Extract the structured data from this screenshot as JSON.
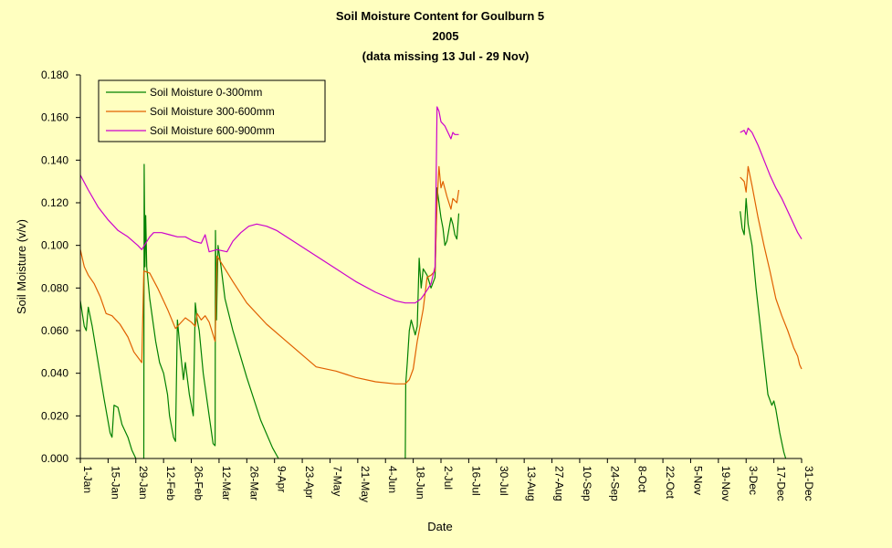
{
  "chart_data": {
    "type": "line",
    "title": "Soil Moisture Content for Goulburn 5",
    "subtitle_year": "2005",
    "subtitle_note": "(data missing 13 Jul - 29 Nov)",
    "xlabel": "Date",
    "ylabel": "Soil Moisture (v/v)",
    "ylim": [
      0,
      0.18
    ],
    "xlim_days": [
      1,
      365
    ],
    "grid": false,
    "legend_position": "top-left",
    "y_ticks": [
      "0.000",
      "0.020",
      "0.040",
      "0.060",
      "0.080",
      "0.100",
      "0.120",
      "0.140",
      "0.160",
      "0.180"
    ],
    "x_tick_labels": [
      "1-Jan",
      "15-Jan",
      "29-Jan",
      "12-Feb",
      "26-Feb",
      "12-Mar",
      "26-Mar",
      "9-Apr",
      "23-Apr",
      "7-May",
      "21-May",
      "4-Jun",
      "18-Jun",
      "2-Jul",
      "16-Jul",
      "30-Jul",
      "13-Aug",
      "27-Aug",
      "10-Sep",
      "24-Sep",
      "8-Oct",
      "22-Oct",
      "5-Nov",
      "19-Nov",
      "3-Dec",
      "17-Dec",
      "31-Dec"
    ],
    "x_tick_days": [
      1,
      15,
      29,
      43,
      57,
      71,
      85,
      99,
      113,
      127,
      141,
      155,
      169,
      183,
      197,
      211,
      225,
      239,
      253,
      267,
      281,
      295,
      309,
      323,
      337,
      351,
      365
    ],
    "series": [
      {
        "name": "Soil Moisture 0-300mm",
        "color": "#008000",
        "segments": [
          [
            [
              1,
              0.074
            ],
            [
              3,
              0.062
            ],
            [
              4,
              0.06
            ],
            [
              5,
              0.071
            ],
            [
              7,
              0.062
            ],
            [
              10,
              0.045
            ],
            [
              13,
              0.028
            ],
            [
              16,
              0.012
            ],
            [
              17,
              0.01
            ],
            [
              18,
              0.025
            ],
            [
              20,
              0.024
            ],
            [
              22,
              0.016
            ],
            [
              25,
              0.01
            ],
            [
              27,
              0.004
            ],
            [
              29,
              0.0
            ]
          ],
          [
            [
              33,
              0.0
            ],
            [
              33.2,
              0.138
            ],
            [
              33.6,
              0.09
            ],
            [
              34,
              0.114
            ],
            [
              34.5,
              0.09
            ],
            [
              36,
              0.075
            ],
            [
              39,
              0.055
            ],
            [
              41,
              0.045
            ],
            [
              43,
              0.04
            ],
            [
              45,
              0.03
            ],
            [
              46,
              0.02
            ],
            [
              48,
              0.01
            ],
            [
              49,
              0.008
            ],
            [
              50,
              0.065
            ],
            [
              51,
              0.055
            ],
            [
              53,
              0.037
            ],
            [
              54,
              0.045
            ],
            [
              56,
              0.03
            ],
            [
              58,
              0.02
            ],
            [
              59,
              0.073
            ],
            [
              60,
              0.065
            ],
            [
              61,
              0.06
            ],
            [
              63,
              0.04
            ],
            [
              66,
              0.02
            ],
            [
              68,
              0.007
            ],
            [
              69,
              0.006
            ],
            [
              69.2,
              0.107
            ],
            [
              69.7,
              0.065
            ],
            [
              70.5,
              0.1
            ],
            [
              72,
              0.09
            ],
            [
              74,
              0.075
            ],
            [
              78,
              0.06
            ],
            [
              85,
              0.038
            ],
            [
              92,
              0.018
            ],
            [
              98,
              0.005
            ],
            [
              101,
              0.0
            ]
          ],
          [
            [
              165,
              0.0
            ],
            [
              165.2,
              0.035
            ],
            [
              166,
              0.045
            ],
            [
              167,
              0.06
            ],
            [
              168,
              0.065
            ],
            [
              170,
              0.058
            ],
            [
              171,
              0.062
            ],
            [
              172,
              0.094
            ],
            [
              173,
              0.08
            ],
            [
              174,
              0.089
            ],
            [
              176,
              0.086
            ],
            [
              177,
              0.083
            ],
            [
              178,
              0.08
            ],
            [
              180,
              0.085
            ],
            [
              181,
              0.127
            ],
            [
              182,
              0.12
            ],
            [
              183,
              0.113
            ],
            [
              184,
              0.108
            ],
            [
              185,
              0.1
            ],
            [
              186,
              0.102
            ],
            [
              188,
              0.113
            ],
            [
              189,
              0.11
            ],
            [
              190,
              0.105
            ],
            [
              191,
              0.103
            ],
            [
              192,
              0.115
            ]
          ],
          [
            [
              334,
              0.116
            ],
            [
              335,
              0.108
            ],
            [
              336,
              0.105
            ],
            [
              337,
              0.122
            ],
            [
              338,
              0.11
            ],
            [
              340,
              0.1
            ],
            [
              342,
              0.08
            ],
            [
              345,
              0.055
            ],
            [
              348,
              0.03
            ],
            [
              350,
              0.025
            ],
            [
              351,
              0.027
            ],
            [
              352,
              0.023
            ],
            [
              354,
              0.012
            ],
            [
              356,
              0.003
            ],
            [
              357,
              0.0
            ]
          ]
        ]
      },
      {
        "name": "Soil Moisture 300-600mm",
        "color": "#e06000",
        "segments": [
          [
            [
              1,
              0.098
            ],
            [
              3,
              0.09
            ],
            [
              5,
              0.086
            ],
            [
              8,
              0.082
            ],
            [
              11,
              0.076
            ],
            [
              14,
              0.068
            ],
            [
              17,
              0.067
            ],
            [
              21,
              0.063
            ],
            [
              25,
              0.057
            ],
            [
              28,
              0.05
            ],
            [
              32,
              0.045
            ],
            [
              33,
              0.088
            ],
            [
              36,
              0.087
            ],
            [
              40,
              0.08
            ],
            [
              45,
              0.07
            ],
            [
              49,
              0.061
            ],
            [
              51,
              0.063
            ],
            [
              54,
              0.066
            ],
            [
              57,
              0.064
            ],
            [
              59,
              0.062
            ],
            [
              60,
              0.068
            ],
            [
              62,
              0.065
            ],
            [
              64,
              0.067
            ],
            [
              66,
              0.064
            ],
            [
              69,
              0.055
            ],
            [
              70,
              0.095
            ],
            [
              72,
              0.092
            ],
            [
              78,
              0.083
            ],
            [
              85,
              0.073
            ],
            [
              95,
              0.063
            ],
            [
              105,
              0.055
            ],
            [
              115,
              0.047
            ],
            [
              120,
              0.043
            ],
            [
              130,
              0.041
            ],
            [
              140,
              0.038
            ],
            [
              150,
              0.036
            ],
            [
              160,
              0.035
            ],
            [
              165,
              0.035
            ],
            [
              167,
              0.037
            ],
            [
              169,
              0.042
            ],
            [
              171,
              0.055
            ],
            [
              174,
              0.07
            ],
            [
              176,
              0.085
            ],
            [
              178,
              0.086
            ],
            [
              180,
              0.088
            ],
            [
              181,
              0.12
            ],
            [
              182,
              0.137
            ],
            [
              183,
              0.127
            ],
            [
              184,
              0.13
            ],
            [
              186,
              0.123
            ],
            [
              188,
              0.117
            ],
            [
              189,
              0.122
            ],
            [
              191,
              0.12
            ],
            [
              192,
              0.126
            ]
          ],
          [
            [
              334,
              0.132
            ],
            [
              336,
              0.13
            ],
            [
              337,
              0.125
            ],
            [
              338,
              0.137
            ],
            [
              340,
              0.128
            ],
            [
              343,
              0.113
            ],
            [
              346,
              0.1
            ],
            [
              349,
              0.088
            ],
            [
              352,
              0.075
            ],
            [
              355,
              0.067
            ],
            [
              358,
              0.06
            ],
            [
              361,
              0.052
            ],
            [
              363,
              0.048
            ],
            [
              364,
              0.044
            ],
            [
              365,
              0.042
            ]
          ]
        ]
      },
      {
        "name": "Soil Moisture 600-900mm",
        "color": "#cc00cc",
        "segments": [
          [
            [
              1,
              0.133
            ],
            [
              5,
              0.126
            ],
            [
              10,
              0.118
            ],
            [
              15,
              0.112
            ],
            [
              20,
              0.107
            ],
            [
              25,
              0.104
            ],
            [
              30,
              0.1
            ],
            [
              32,
              0.098
            ],
            [
              34,
              0.101
            ],
            [
              36,
              0.104
            ],
            [
              38,
              0.106
            ],
            [
              42,
              0.106
            ],
            [
              46,
              0.105
            ],
            [
              50,
              0.104
            ],
            [
              54,
              0.104
            ],
            [
              58,
              0.102
            ],
            [
              62,
              0.101
            ],
            [
              64,
              0.105
            ],
            [
              66,
              0.097
            ],
            [
              70,
              0.098
            ],
            [
              75,
              0.097
            ],
            [
              78,
              0.102
            ],
            [
              82,
              0.106
            ],
            [
              86,
              0.109
            ],
            [
              90,
              0.11
            ],
            [
              95,
              0.109
            ],
            [
              100,
              0.107
            ],
            [
              110,
              0.101
            ],
            [
              120,
              0.095
            ],
            [
              130,
              0.089
            ],
            [
              140,
              0.083
            ],
            [
              150,
              0.078
            ],
            [
              160,
              0.074
            ],
            [
              165,
              0.073
            ],
            [
              170,
              0.073
            ],
            [
              173,
              0.075
            ],
            [
              176,
              0.079
            ],
            [
              178,
              0.082
            ],
            [
              180,
              0.09
            ],
            [
              181,
              0.165
            ],
            [
              182,
              0.163
            ],
            [
              183,
              0.158
            ],
            [
              185,
              0.156
            ],
            [
              187,
              0.152
            ],
            [
              188,
              0.15
            ],
            [
              189,
              0.153
            ],
            [
              190,
              0.152
            ],
            [
              192,
              0.152
            ]
          ],
          [
            [
              334,
              0.153
            ],
            [
              336,
              0.154
            ],
            [
              337,
              0.152
            ],
            [
              338,
              0.155
            ],
            [
              340,
              0.153
            ],
            [
              343,
              0.147
            ],
            [
              346,
              0.14
            ],
            [
              349,
              0.133
            ],
            [
              352,
              0.127
            ],
            [
              355,
              0.122
            ],
            [
              358,
              0.116
            ],
            [
              361,
              0.11
            ],
            [
              363,
              0.106
            ],
            [
              365,
              0.103
            ]
          ]
        ]
      }
    ]
  }
}
